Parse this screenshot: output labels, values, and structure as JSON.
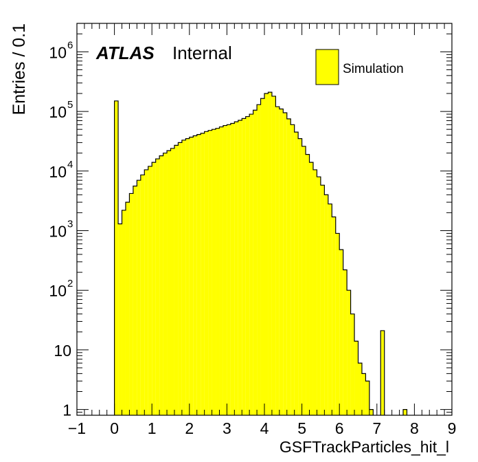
{
  "chart_data": {
    "type": "bar",
    "histogram": true,
    "xlabel": "GSFTrackParticles_hit_l",
    "ylabel": "Entries / 0.1",
    "xlim": [
      -1,
      9
    ],
    "ylim": [
      0.8,
      3000000
    ],
    "log_y": true,
    "bin_width": 0.1,
    "x_ticks": [
      -1,
      0,
      1,
      2,
      3,
      4,
      5,
      6,
      7,
      8,
      9
    ],
    "x_tick_labels": [
      "−1",
      "0",
      "1",
      "2",
      "3",
      "4",
      "5",
      "6",
      "7",
      "8",
      "9"
    ],
    "y_ticks": [
      {
        "value": 1,
        "label": "1",
        "exp": ""
      },
      {
        "value": 10,
        "label": "10",
        "exp": ""
      },
      {
        "value": 100,
        "label": "10",
        "exp": "2"
      },
      {
        "value": 1000,
        "label": "10",
        "exp": "3"
      },
      {
        "value": 10000,
        "label": "10",
        "exp": "4"
      },
      {
        "value": 100000,
        "label": "10",
        "exp": "5"
      },
      {
        "value": 1000000,
        "label": "10",
        "exp": "6"
      }
    ],
    "legend": {
      "label": "Simulation",
      "position": "top-right"
    },
    "series": [
      {
        "name": "Simulation",
        "color": "#ffff00",
        "edge_color": "#000000",
        "bins": [
          {
            "x": 0.0,
            "y": 150000
          },
          {
            "x": 0.1,
            "y": 1300
          },
          {
            "x": 0.2,
            "y": 2200
          },
          {
            "x": 0.3,
            "y": 3000
          },
          {
            "x": 0.4,
            "y": 4200
          },
          {
            "x": 0.5,
            "y": 5600
          },
          {
            "x": 0.6,
            "y": 7000
          },
          {
            "x": 0.7,
            "y": 8600
          },
          {
            "x": 0.8,
            "y": 10500
          },
          {
            "x": 0.9,
            "y": 12000
          },
          {
            "x": 1.0,
            "y": 14000
          },
          {
            "x": 1.1,
            "y": 16000
          },
          {
            "x": 1.2,
            "y": 18000
          },
          {
            "x": 1.3,
            "y": 20000
          },
          {
            "x": 1.4,
            "y": 22000
          },
          {
            "x": 1.5,
            "y": 24000
          },
          {
            "x": 1.6,
            "y": 27000
          },
          {
            "x": 1.7,
            "y": 30000
          },
          {
            "x": 1.8,
            "y": 33000
          },
          {
            "x": 1.9,
            "y": 35000
          },
          {
            "x": 2.0,
            "y": 37000
          },
          {
            "x": 2.1,
            "y": 39000
          },
          {
            "x": 2.2,
            "y": 41000
          },
          {
            "x": 2.3,
            "y": 43000
          },
          {
            "x": 2.4,
            "y": 46000
          },
          {
            "x": 2.5,
            "y": 48000
          },
          {
            "x": 2.6,
            "y": 50000
          },
          {
            "x": 2.7,
            "y": 52000
          },
          {
            "x": 2.8,
            "y": 55000
          },
          {
            "x": 2.9,
            "y": 58000
          },
          {
            "x": 3.0,
            "y": 60000
          },
          {
            "x": 3.1,
            "y": 63000
          },
          {
            "x": 3.2,
            "y": 67000
          },
          {
            "x": 3.3,
            "y": 71000
          },
          {
            "x": 3.4,
            "y": 76000
          },
          {
            "x": 3.5,
            "y": 82000
          },
          {
            "x": 3.6,
            "y": 90000
          },
          {
            "x": 3.7,
            "y": 105000
          },
          {
            "x": 3.8,
            "y": 130000
          },
          {
            "x": 3.9,
            "y": 165000
          },
          {
            "x": 4.0,
            "y": 200000
          },
          {
            "x": 4.1,
            "y": 210000
          },
          {
            "x": 4.2,
            "y": 180000
          },
          {
            "x": 4.3,
            "y": 120000
          },
          {
            "x": 4.4,
            "y": 110000
          },
          {
            "x": 4.5,
            "y": 95000
          },
          {
            "x": 4.6,
            "y": 75000
          },
          {
            "x": 4.7,
            "y": 60000
          },
          {
            "x": 4.8,
            "y": 45000
          },
          {
            "x": 4.9,
            "y": 35000
          },
          {
            "x": 5.0,
            "y": 26000
          },
          {
            "x": 5.1,
            "y": 19000
          },
          {
            "x": 5.2,
            "y": 14000
          },
          {
            "x": 5.3,
            "y": 10500
          },
          {
            "x": 5.4,
            "y": 8000
          },
          {
            "x": 5.5,
            "y": 5800
          },
          {
            "x": 5.6,
            "y": 4000
          },
          {
            "x": 5.7,
            "y": 2800
          },
          {
            "x": 5.8,
            "y": 1700
          },
          {
            "x": 5.9,
            "y": 900
          },
          {
            "x": 6.0,
            "y": 480
          },
          {
            "x": 6.1,
            "y": 220
          },
          {
            "x": 6.2,
            "y": 100
          },
          {
            "x": 6.3,
            "y": 40
          },
          {
            "x": 6.4,
            "y": 14
          },
          {
            "x": 6.5,
            "y": 6
          },
          {
            "x": 6.6,
            "y": 4
          },
          {
            "x": 6.7,
            "y": 3
          },
          {
            "x": 6.8,
            "y": 1
          },
          {
            "x": 7.1,
            "y": 21
          },
          {
            "x": 7.7,
            "y": 1
          }
        ]
      }
    ]
  },
  "annotations": {
    "atlas_label": "ATLAS",
    "internal_label": "Internal"
  }
}
